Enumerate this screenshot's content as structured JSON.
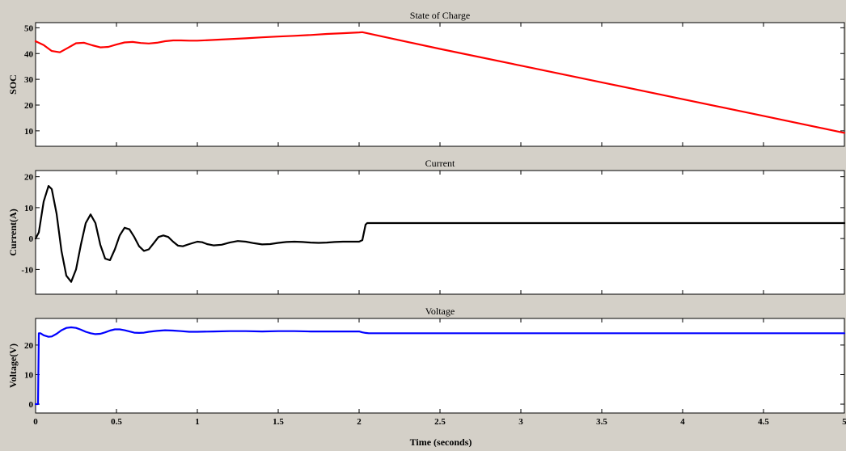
{
  "figure": {
    "background": "#d4d0c8",
    "axes_background": "#ffffff",
    "xlabel": "Time (seconds)"
  },
  "chart_data": [
    {
      "type": "line",
      "title": "State of Charge",
      "xlabel": "",
      "ylabel": "SOC",
      "xlim": [
        0,
        5
      ],
      "ylim": [
        4,
        52
      ],
      "xticks": [
        0,
        0.5,
        1,
        1.5,
        2,
        2.5,
        3,
        3.5,
        4,
        4.5,
        5
      ],
      "yticks": [
        10,
        20,
        30,
        40,
        50
      ],
      "grid": false,
      "series": [
        {
          "color": "#ff0000",
          "x": [
            0,
            0.05,
            0.1,
            0.15,
            0.2,
            0.25,
            0.3,
            0.35,
            0.4,
            0.45,
            0.5,
            0.55,
            0.6,
            0.65,
            0.7,
            0.75,
            0.8,
            0.85,
            0.9,
            0.95,
            1.0,
            1.1,
            1.2,
            1.3,
            1.4,
            1.5,
            1.6,
            1.7,
            1.8,
            1.9,
            2.0,
            2.02,
            2.5,
            3.0,
            3.5,
            4.0,
            4.5,
            5.0
          ],
          "y": [
            44.8,
            43.3,
            41.0,
            40.5,
            42.2,
            44.0,
            44.2,
            43.2,
            42.4,
            42.6,
            43.5,
            44.3,
            44.5,
            44.1,
            43.9,
            44.2,
            44.8,
            45.1,
            45.1,
            45.0,
            45.0,
            45.3,
            45.6,
            45.9,
            46.3,
            46.6,
            46.9,
            47.2,
            47.6,
            47.9,
            48.2,
            48.3,
            41.8,
            35.3,
            28.8,
            22.3,
            15.8,
            9.2
          ]
        }
      ]
    },
    {
      "type": "line",
      "title": "Current",
      "xlabel": "",
      "ylabel": "Current(A)",
      "xlim": [
        0,
        5
      ],
      "ylim": [
        -18,
        22
      ],
      "xticks": [
        0,
        0.5,
        1,
        1.5,
        2,
        2.5,
        3,
        3.5,
        4,
        4.5,
        5
      ],
      "yticks": [
        -10,
        0,
        10,
        20
      ],
      "grid": false,
      "series": [
        {
          "color": "#000000",
          "x": [
            0,
            0.02,
            0.05,
            0.08,
            0.1,
            0.13,
            0.16,
            0.19,
            0.22,
            0.25,
            0.28,
            0.31,
            0.34,
            0.37,
            0.4,
            0.43,
            0.46,
            0.49,
            0.52,
            0.55,
            0.58,
            0.61,
            0.64,
            0.67,
            0.7,
            0.73,
            0.76,
            0.79,
            0.82,
            0.85,
            0.88,
            0.91,
            0.95,
            1.0,
            1.03,
            1.06,
            1.1,
            1.15,
            1.2,
            1.25,
            1.3,
            1.35,
            1.4,
            1.45,
            1.5,
            1.55,
            1.6,
            1.65,
            1.7,
            1.75,
            1.8,
            1.85,
            1.9,
            1.95,
            2.0,
            2.02,
            2.03,
            2.04,
            2.05,
            2.07,
            2.1,
            2.5,
            3.0,
            3.5,
            4.0,
            4.5,
            5.0
          ],
          "y": [
            0,
            2,
            12,
            17,
            16,
            8,
            -4,
            -12,
            -14,
            -10,
            -2,
            5,
            7.8,
            5,
            -2,
            -6.5,
            -7,
            -3.5,
            1,
            3.5,
            3,
            0.5,
            -2.5,
            -4,
            -3.5,
            -1.5,
            0.5,
            1,
            0.5,
            -1,
            -2.3,
            -2.5,
            -1.8,
            -1,
            -1.2,
            -1.8,
            -2.2,
            -2,
            -1.3,
            -0.8,
            -1,
            -1.5,
            -1.9,
            -1.8,
            -1.4,
            -1.1,
            -1,
            -1.1,
            -1.3,
            -1.4,
            -1.3,
            -1.1,
            -1,
            -1,
            -1,
            -0.5,
            2,
            4.5,
            5,
            5,
            5,
            5,
            5,
            5,
            5,
            5,
            5
          ]
        }
      ]
    },
    {
      "type": "line",
      "title": "Voltage",
      "xlabel": "",
      "ylabel": "Voltage(V)",
      "xlim": [
        0,
        5
      ],
      "ylim": [
        -3,
        29
      ],
      "xticks": [
        0,
        0.5,
        1,
        1.5,
        2,
        2.5,
        3,
        3.5,
        4,
        4.5,
        5
      ],
      "xticklabels": [
        "0",
        "0.5",
        "1",
        "1.5",
        "2",
        "2.5",
        "3",
        "3.5",
        "4",
        "4.5",
        "5"
      ],
      "yticks": [
        0,
        10,
        20
      ],
      "grid": false,
      "series": [
        {
          "color": "#0000ff",
          "x": [
            0,
            0.015,
            0.02,
            0.03,
            0.05,
            0.08,
            0.1,
            0.13,
            0.16,
            0.19,
            0.22,
            0.25,
            0.28,
            0.31,
            0.34,
            0.37,
            0.4,
            0.43,
            0.46,
            0.49,
            0.52,
            0.55,
            0.58,
            0.61,
            0.64,
            0.67,
            0.7,
            0.75,
            0.8,
            0.85,
            0.9,
            0.95,
            1.0,
            1.1,
            1.2,
            1.3,
            1.4,
            1.5,
            1.6,
            1.7,
            1.8,
            1.9,
            2.0,
            2.02,
            2.04,
            2.06,
            2.1,
            2.5,
            3.0,
            3.5,
            4.0,
            4.5,
            5.0
          ],
          "y": [
            0,
            0,
            24,
            24,
            23.3,
            22.8,
            22.9,
            23.8,
            25,
            25.8,
            26,
            25.8,
            25.2,
            24.5,
            24,
            23.7,
            23.8,
            24.3,
            24.9,
            25.3,
            25.3,
            25,
            24.6,
            24.2,
            24.1,
            24.2,
            24.5,
            24.8,
            25,
            24.9,
            24.7,
            24.5,
            24.5,
            24.6,
            24.7,
            24.7,
            24.6,
            24.7,
            24.7,
            24.6,
            24.6,
            24.6,
            24.6,
            24.3,
            24.1,
            24,
            24,
            24,
            24,
            24,
            24,
            24,
            24
          ]
        }
      ]
    }
  ]
}
